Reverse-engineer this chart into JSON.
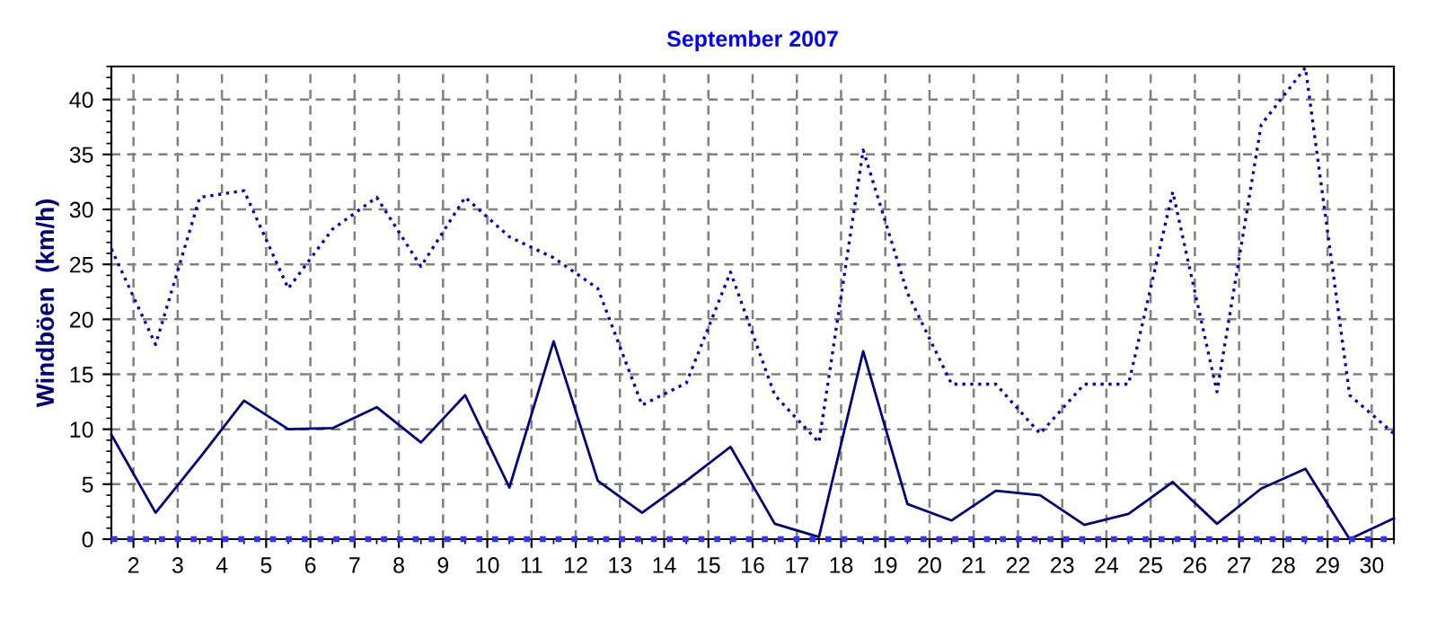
{
  "chart_data": {
    "type": "line",
    "title": "September 2007",
    "ylabel": "Windböen  (km/h)",
    "x": [
      1.5,
      2.5,
      3.5,
      4.5,
      5.5,
      6.5,
      7.5,
      8.5,
      9.5,
      10.5,
      11.5,
      12.5,
      13.5,
      14.5,
      15.5,
      16.5,
      17.5,
      18.5,
      19.5,
      20.5,
      21.5,
      22.5,
      23.5,
      24.5,
      25.5,
      26.5,
      27.5,
      28.5,
      29.5,
      30.5
    ],
    "series": [
      {
        "color": "#0000cc",
        "line_style": "dotted",
        "values": [
          26.4,
          17.7,
          31.1,
          31.7,
          22.8,
          28.2,
          31.1,
          24.8,
          31.1,
          27.5,
          25.6,
          22.8,
          12.2,
          14.2,
          24.3,
          13.1,
          8.8,
          35.4,
          22.4,
          14.1,
          14.1,
          9.6,
          14.1,
          14.1,
          31.6,
          13.4,
          37.7,
          42.9,
          13.1,
          9.6
        ]
      },
      {
        "color": "#000080",
        "line_style": "solid",
        "values": [
          9.5,
          2.4,
          7.4,
          12.6,
          10.0,
          10.1,
          12.0,
          8.8,
          13.1,
          4.7,
          18.0,
          5.3,
          2.4,
          5.3,
          8.4,
          1.4,
          0.2,
          17.1,
          3.2,
          1.7,
          4.4,
          4.0,
          1.3,
          2.3,
          5.2,
          1.4,
          4.6,
          6.4,
          0,
          1.9
        ]
      },
      {
        "color": "#3333ff",
        "line_style": "dotted",
        "values": [
          0,
          0,
          0,
          0,
          0,
          0,
          0,
          0,
          0,
          0,
          0,
          0,
          0,
          0,
          0,
          0,
          0,
          0,
          0,
          0,
          0,
          0,
          0,
          0,
          0,
          0,
          0,
          0,
          0,
          0
        ]
      }
    ],
    "xlim": [
      1.5,
      30.5
    ],
    "ylim": [
      0,
      43
    ],
    "xticks": [
      2,
      3,
      4,
      5,
      6,
      7,
      8,
      9,
      10,
      11,
      12,
      13,
      14,
      15,
      16,
      17,
      18,
      19,
      20,
      21,
      22,
      23,
      24,
      25,
      26,
      27,
      28,
      29,
      30
    ],
    "yticks": [
      0,
      5,
      10,
      15,
      20,
      25,
      30,
      35,
      40
    ],
    "grid": true,
    "legend": false
  }
}
